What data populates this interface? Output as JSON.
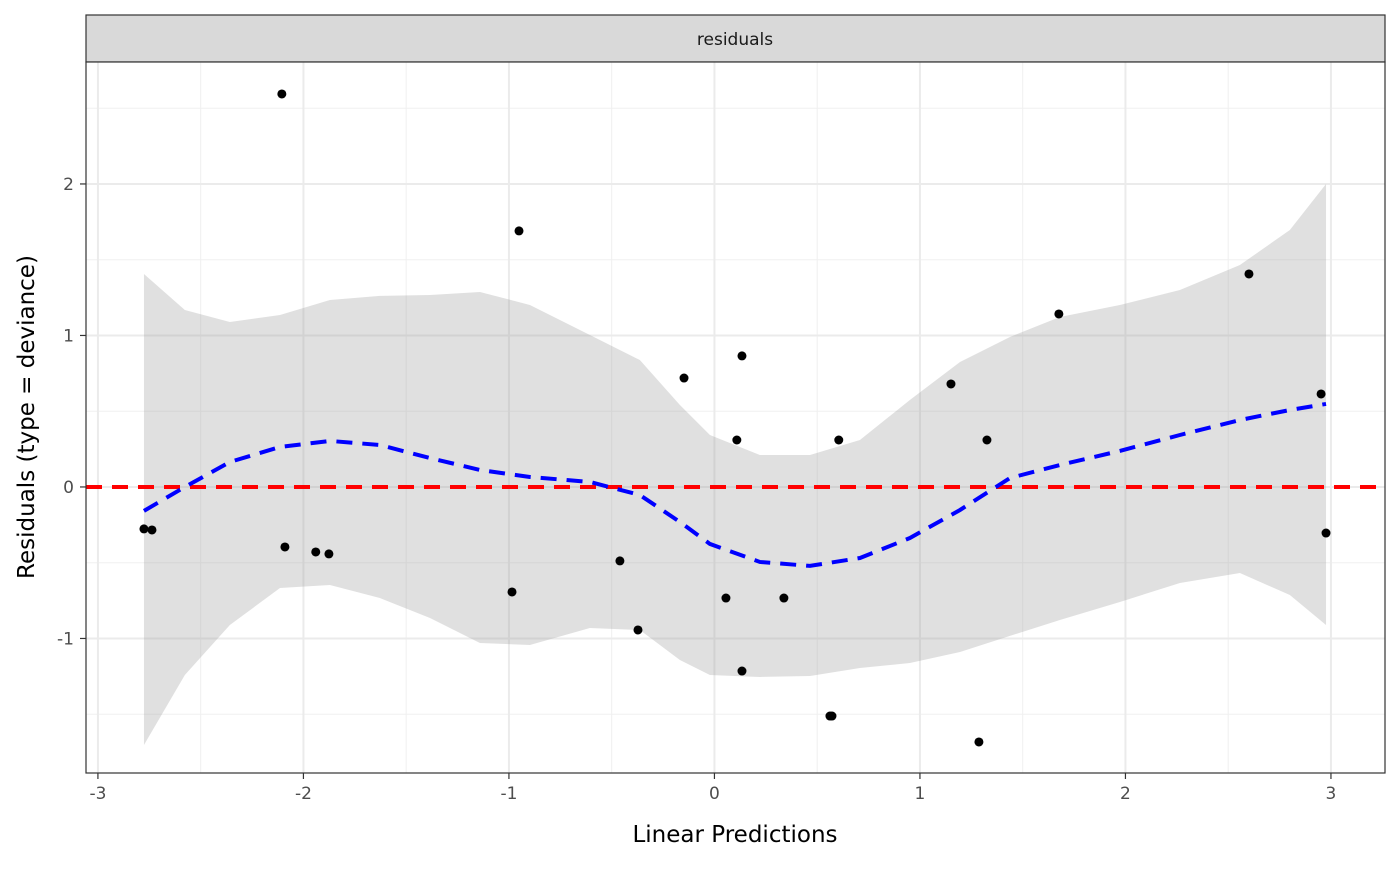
{
  "chart_data": {
    "type": "scatter",
    "strip_label": "residuals",
    "xlabel": "Linear Predictions",
    "ylabel": "Residuals (type = deviance)",
    "xlim": [
      -3.058,
      3.263
    ],
    "ylim": [
      -1.888,
      2.805
    ],
    "xticks": [
      -3,
      -2,
      -1,
      0,
      1,
      2,
      3
    ],
    "xtick_labels": [
      "-3",
      "-2",
      "-1",
      "0",
      "1",
      "2",
      "3"
    ],
    "yticks": [
      -1,
      0,
      1,
      2
    ],
    "ytick_labels": [
      "-1",
      "0",
      "1",
      "2"
    ],
    "grid": true,
    "reference_line": {
      "y": 0,
      "color": "#ff0000",
      "style": "dashed"
    },
    "points": [
      [
        -2.105,
        2.594
      ],
      [
        -0.951,
        1.69
      ],
      [
        -2.776,
        -0.277
      ],
      [
        -2.737,
        -0.284
      ],
      [
        -2.09,
        -0.396
      ],
      [
        -1.94,
        -0.429
      ],
      [
        -1.876,
        -0.442
      ],
      [
        -0.985,
        -0.693
      ],
      [
        -0.46,
        -0.488
      ],
      [
        -0.372,
        -0.944
      ],
      [
        -0.148,
        0.719
      ],
      [
        0.056,
        -0.733
      ],
      [
        0.109,
        0.31
      ],
      [
        0.134,
        0.865
      ],
      [
        0.134,
        -1.215
      ],
      [
        0.338,
        -0.733
      ],
      [
        0.562,
        -1.512
      ],
      [
        0.572,
        -1.512
      ],
      [
        0.605,
        0.31
      ],
      [
        1.151,
        0.68
      ],
      [
        1.287,
        -1.683
      ],
      [
        1.326,
        0.31
      ],
      [
        1.676,
        1.142
      ],
      [
        2.601,
        1.406
      ],
      [
        2.952,
        0.614
      ],
      [
        2.976,
        -0.304
      ]
    ],
    "smooth": {
      "color": "#0000ff",
      "style": "dashed",
      "x": [
        -2.776,
        -2.577,
        -2.358,
        -2.114,
        -1.871,
        -1.628,
        -1.384,
        -1.141,
        -0.898,
        -0.606,
        -0.363,
        -0.168,
        -0.022,
        0.221,
        0.465,
        0.708,
        0.951,
        1.195,
        1.438,
        1.681,
        1.973,
        2.265,
        2.557,
        2.8,
        2.976
      ],
      "y": [
        -0.158,
        0,
        0.165,
        0.264,
        0.304,
        0.277,
        0.191,
        0.112,
        0.066,
        0.033,
        -0.053,
        -0.231,
        -0.376,
        -0.495,
        -0.521,
        -0.469,
        -0.337,
        -0.152,
        0.059,
        0.145,
        0.238,
        0.343,
        0.442,
        0.508,
        0.548
      ],
      "upper": [
        1.406,
        1.168,
        1.089,
        1.135,
        1.234,
        1.261,
        1.267,
        1.287,
        1.201,
        1.003,
        0.838,
        0.541,
        0.343,
        0.211,
        0.211,
        0.31,
        0.574,
        0.825,
        0.99,
        1.122,
        1.201,
        1.3,
        1.465,
        1.696,
        2.0
      ],
      "lower": [
        -1.703,
        -1.241,
        -0.911,
        -0.667,
        -0.647,
        -0.733,
        -0.865,
        -1.03,
        -1.043,
        -0.931,
        -0.944,
        -1.142,
        -1.241,
        -1.254,
        -1.248,
        -1.195,
        -1.162,
        -1.089,
        -0.983,
        -0.878,
        -0.759,
        -0.634,
        -0.568,
        -0.713,
        -0.911
      ]
    }
  }
}
